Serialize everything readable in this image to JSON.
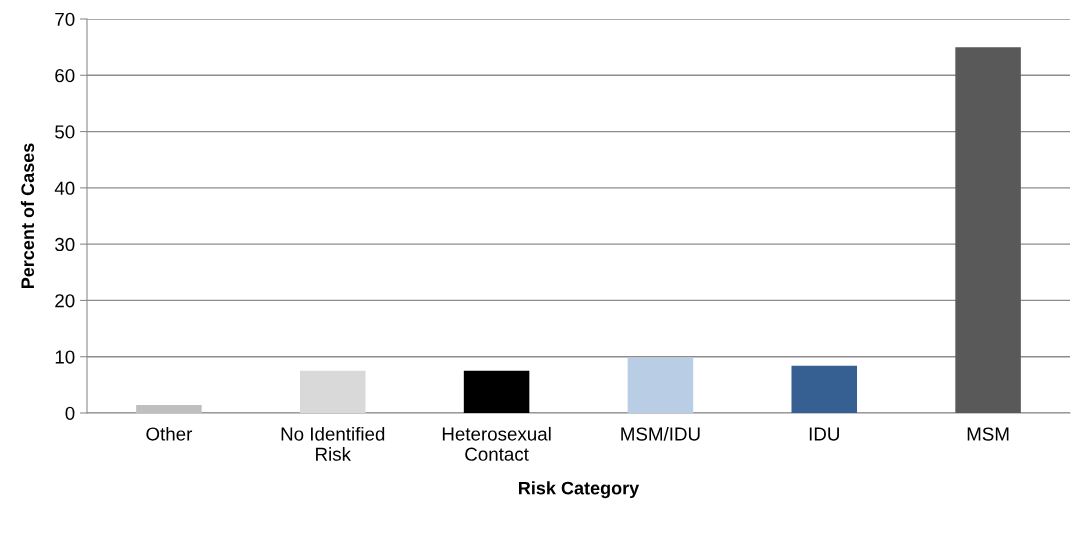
{
  "chart_data": {
    "type": "bar",
    "xlabel": "Risk Category",
    "ylabel": "Percent of Cases",
    "categories": [
      "Other",
      "No Identified\nRisk",
      "Heterosexual\nContact",
      "MSM/IDU",
      "IDU",
      "MSM"
    ],
    "values": [
      1.4,
      7.5,
      7.5,
      9.8,
      8.4,
      65.0
    ],
    "colors": [
      "#bfbfbf",
      "#d9d9d9",
      "#000000",
      "#b9cde5",
      "#376092",
      "#595959"
    ],
    "ylim": [
      0,
      70
    ],
    "yticks": [
      0,
      10,
      20,
      30,
      40,
      50,
      60,
      70
    ],
    "grid": "y",
    "legend": false
  }
}
